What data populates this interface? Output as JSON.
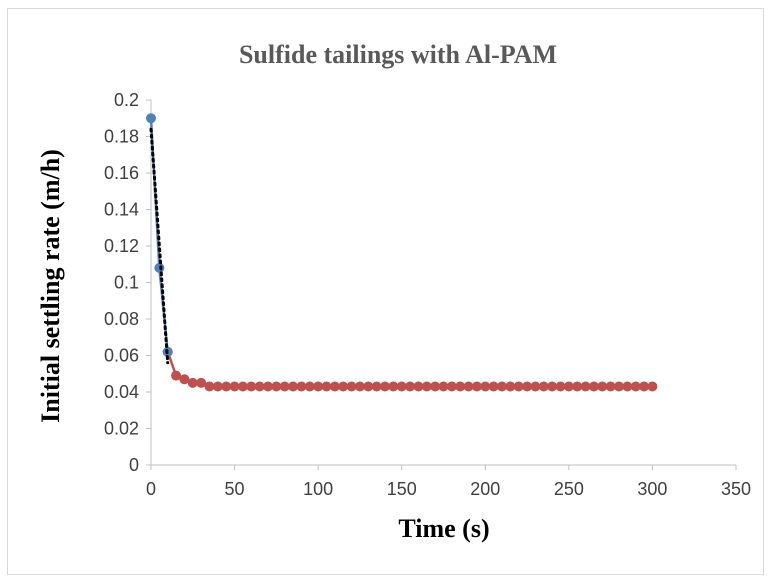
{
  "chart_data": {
    "type": "line",
    "title": "Sulfide tailings with Al-PAM",
    "xlabel": "Time (s)",
    "ylabel": "Initial settling rate (m/h)",
    "xlim": [
      0,
      350
    ],
    "ylim": [
      0,
      0.2
    ],
    "x_ticks": [
      "0",
      "50",
      "100",
      "150",
      "200",
      "250",
      "300",
      "350"
    ],
    "y_ticks": [
      "0",
      "0.02",
      "0.04",
      "0.06",
      "0.08",
      "0.1",
      "0.12",
      "0.14",
      "0.16",
      "0.18",
      "0.2"
    ],
    "grid": false,
    "legend": "none",
    "series": [
      {
        "color": "#4f81bd",
        "marker": "circle",
        "points": [
          [
            0,
            0.19
          ],
          [
            5,
            0.108
          ],
          [
            10,
            0.062
          ]
        ]
      },
      {
        "color": "#c0504d",
        "marker": "circle",
        "points": [
          [
            10,
            0.062
          ],
          [
            15,
            0.049
          ],
          [
            20,
            0.047
          ],
          [
            25,
            0.045
          ],
          [
            30,
            0.045
          ],
          [
            35,
            0.043
          ],
          [
            40,
            0.043
          ],
          [
            45,
            0.043
          ],
          [
            50,
            0.043
          ],
          [
            55,
            0.043
          ],
          [
            60,
            0.043
          ],
          [
            65,
            0.043
          ],
          [
            70,
            0.043
          ],
          [
            75,
            0.043
          ],
          [
            80,
            0.043
          ],
          [
            85,
            0.043
          ],
          [
            90,
            0.043
          ],
          [
            95,
            0.043
          ],
          [
            100,
            0.043
          ],
          [
            105,
            0.043
          ],
          [
            110,
            0.043
          ],
          [
            115,
            0.043
          ],
          [
            120,
            0.043
          ],
          [
            125,
            0.043
          ],
          [
            130,
            0.043
          ],
          [
            135,
            0.043
          ],
          [
            140,
            0.043
          ],
          [
            145,
            0.043
          ],
          [
            150,
            0.043
          ],
          [
            155,
            0.043
          ],
          [
            160,
            0.043
          ],
          [
            165,
            0.043
          ],
          [
            170,
            0.043
          ],
          [
            175,
            0.043
          ],
          [
            180,
            0.043
          ],
          [
            185,
            0.043
          ],
          [
            190,
            0.043
          ],
          [
            195,
            0.043
          ],
          [
            200,
            0.043
          ],
          [
            205,
            0.043
          ],
          [
            210,
            0.043
          ],
          [
            215,
            0.043
          ],
          [
            220,
            0.043
          ],
          [
            225,
            0.043
          ],
          [
            230,
            0.043
          ],
          [
            235,
            0.043
          ],
          [
            240,
            0.043
          ],
          [
            245,
            0.043
          ],
          [
            250,
            0.043
          ],
          [
            255,
            0.043
          ],
          [
            260,
            0.043
          ],
          [
            265,
            0.043
          ],
          [
            270,
            0.043
          ],
          [
            275,
            0.043
          ],
          [
            280,
            0.043
          ],
          [
            285,
            0.043
          ],
          [
            290,
            0.043
          ],
          [
            295,
            0.043
          ],
          [
            300,
            0.043
          ]
        ]
      }
    ],
    "trendline": {
      "color": "#000000",
      "style": "dotted",
      "x": [
        0,
        10
      ]
    }
  }
}
